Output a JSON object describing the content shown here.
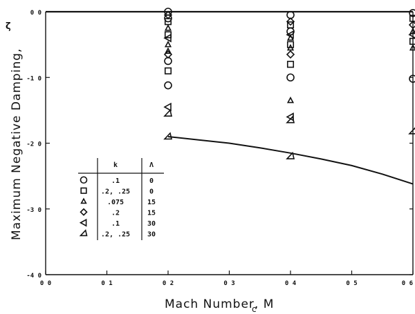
{
  "chart_data": {
    "type": "scatter",
    "title": "",
    "xlabel": "Mach Number, M",
    "xlabel_subscript": "c",
    "ylabel": "Maximum Negative Damping,",
    "ylabel_symbol": "ζ",
    "xlim": [
      0.0,
      0.6
    ],
    "ylim": [
      -4.0,
      0.0
    ],
    "x_ticks": [
      0.0,
      0.1,
      0.2,
      0.3,
      0.4,
      0.5,
      0.6
    ],
    "x_tick_labels": [
      "0 0",
      "0 1",
      "0 2",
      "0 3",
      "0 4",
      "0 5",
      "0 6"
    ],
    "y_ticks": [
      0.0,
      -1.0,
      -2.0,
      -3.0,
      -4.0
    ],
    "y_tick_labels": [
      "0 0",
      "-1 0",
      "-2 0",
      "-3 0",
      "-4 0"
    ],
    "grid": false,
    "legend": {
      "placement": "lower-left",
      "headers": [
        "",
        "k",
        "Λ"
      ],
      "rows": [
        {
          "symbol": "circle",
          "k": ".1",
          "lambda": "0"
        },
        {
          "symbol": "square",
          "k": ".2, .25",
          "lambda": "0"
        },
        {
          "symbol": "triangle-small",
          "k": ".075",
          "lambda": "15"
        },
        {
          "symbol": "diamond",
          "k": ".2",
          "lambda": "15"
        },
        {
          "symbol": "triangle-left",
          "k": ".1",
          "lambda": "30"
        },
        {
          "symbol": "triangle-flag",
          "k": ".2, .25",
          "lambda": "30"
        }
      ]
    },
    "series": [
      {
        "marker": "circle",
        "x": [
          0.2,
          0.2,
          0.2,
          0.2,
          0.4,
          0.4,
          0.4,
          0.6,
          0.6
        ],
        "y": [
          0.0,
          -0.1,
          -0.75,
          -1.12,
          -0.05,
          -0.3,
          -1.0,
          -0.02,
          -1.02
        ]
      },
      {
        "marker": "square",
        "x": [
          0.2,
          0.2,
          0.2,
          0.4,
          0.4,
          0.4,
          0.6,
          0.6
        ],
        "y": [
          -0.15,
          -0.35,
          -0.9,
          -0.2,
          -0.5,
          -0.8,
          -0.1,
          -0.45
        ]
      },
      {
        "marker": "triangle-small",
        "x": [
          0.2,
          0.2,
          0.2,
          0.4,
          0.4,
          0.4,
          0.6,
          0.6
        ],
        "y": [
          -0.25,
          -0.5,
          -0.6,
          -0.4,
          -0.55,
          -1.35,
          -0.3,
          -0.55
        ]
      },
      {
        "marker": "diamond",
        "x": [
          0.2,
          0.2,
          0.4,
          0.4,
          0.6
        ],
        "y": [
          -0.05,
          -0.65,
          -0.15,
          -0.65,
          -0.2
        ]
      },
      {
        "marker": "triangle-left",
        "x": [
          0.2,
          0.2,
          0.4,
          0.4,
          0.6
        ],
        "y": [
          -0.4,
          -1.45,
          -0.35,
          -1.6,
          -0.35
        ]
      },
      {
        "marker": "triangle-flag",
        "x": [
          0.2,
          0.2,
          0.4,
          0.4,
          0.6
        ],
        "y": [
          -1.55,
          -1.9,
          -1.65,
          -2.2,
          -1.82
        ]
      }
    ],
    "curve": {
      "x": [
        0.2,
        0.25,
        0.3,
        0.35,
        0.4,
        0.45,
        0.5,
        0.55,
        0.6
      ],
      "y": [
        -1.9,
        -1.95,
        -2.0,
        -2.07,
        -2.15,
        -2.24,
        -2.34,
        -2.47,
        -2.62
      ]
    }
  }
}
